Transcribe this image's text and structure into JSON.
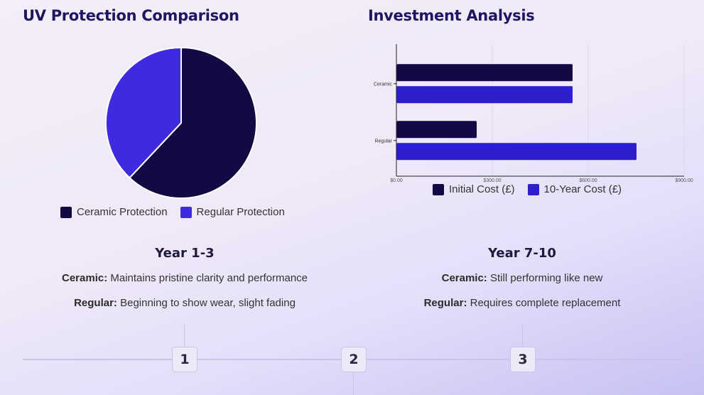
{
  "uv_section": {
    "title": "UV Protection Comparison"
  },
  "investment_section": {
    "title": "Investment Analysis"
  },
  "colors": {
    "ceramic": "#130a44",
    "regular": "#3e2be0",
    "initial": "#130a44",
    "ten_year": "#2e1fcc"
  },
  "chart_data": [
    {
      "type": "pie",
      "title": "UV Protection Comparison",
      "labels": [
        "Ceramic Protection",
        "Regular Protection"
      ],
      "values": [
        62,
        38
      ],
      "legend_position": "bottom"
    },
    {
      "type": "bar",
      "orientation": "horizontal",
      "title": "Investment Analysis",
      "categories": [
        "Ceramic",
        "Regular"
      ],
      "series": [
        {
          "name": "Initial Cost (£)",
          "values": [
            550,
            250
          ]
        },
        {
          "name": "10-Year Cost (£)",
          "values": [
            550,
            750
          ]
        }
      ],
      "xlim": [
        0,
        900
      ],
      "xticks": [
        "$0.00",
        "$300.00",
        "$600.00",
        "$900.00"
      ],
      "grid": true,
      "legend_position": "bottom"
    }
  ],
  "timeline": {
    "year_1_3": {
      "title": "Year 1-3",
      "ceramic_label": "Ceramic:",
      "ceramic_text": "Maintains pristine clarity and performance",
      "regular_label": "Regular:",
      "regular_text": "Beginning to show wear, slight fading"
    },
    "year_7_10": {
      "title": "Year 7-10",
      "ceramic_label": "Ceramic:",
      "ceramic_text": "Still performing like new",
      "regular_label": "Regular:",
      "regular_text": "Requires complete replacement"
    },
    "markers": [
      "1",
      "2",
      "3"
    ]
  }
}
